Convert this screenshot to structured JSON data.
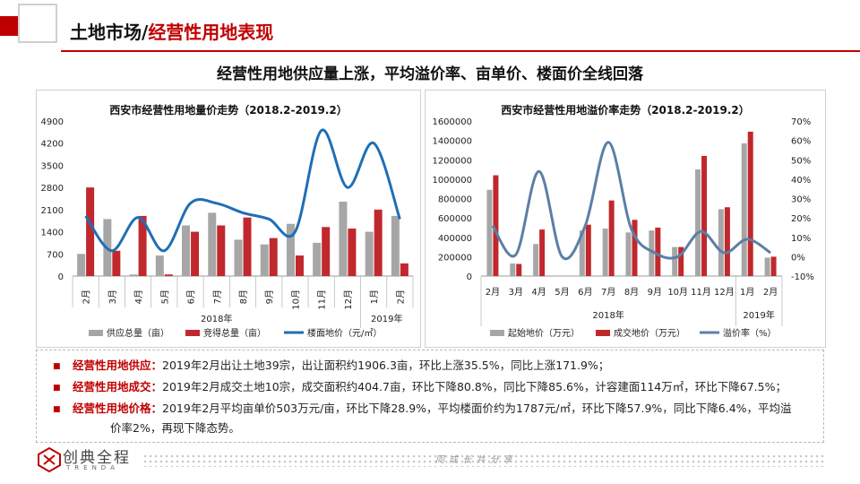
{
  "header": {
    "title_black": "土地市场/",
    "title_red": "经营性用地表现",
    "subtitle": "经营性用地供应量上涨，平均溢价率、亩单价、楼面价全线回落"
  },
  "colors": {
    "accent": "#c00000",
    "gray_bar": "#a6a6a6",
    "red_bar": "#c0282d",
    "line_blue": "#1f6fb5",
    "line_steel": "#5b7fa6"
  },
  "chart_data": [
    {
      "type": "bar",
      "title": "西安市经营性用地量价走势（2018.2-2019.2）",
      "categories": [
        "2月",
        "3月",
        "4月",
        "5月",
        "6月",
        "7月",
        "8月",
        "9月",
        "10月",
        "11月",
        "12月",
        "1月",
        "2月"
      ],
      "year_labels": [
        "2018年",
        "2019年"
      ],
      "ylim": [
        0,
        4900
      ],
      "yticks": [
        "4900",
        "4200",
        "3500",
        "2800",
        "2100",
        "1400",
        "700",
        "0"
      ],
      "series": [
        {
          "name": "供应总量（亩）",
          "type": "bar",
          "values": [
            700,
            1800,
            50,
            650,
            1600,
            2000,
            1150,
            1000,
            1650,
            1050,
            2350,
            1400,
            1900
          ]
        },
        {
          "name": "竞得总量（亩）",
          "type": "bar",
          "values": [
            2800,
            800,
            1900,
            50,
            1400,
            1600,
            1850,
            1200,
            650,
            1550,
            1500,
            2100,
            400
          ]
        },
        {
          "name": "楼面地价（元/㎡）",
          "type": "line",
          "values": [
            1900,
            800,
            1850,
            800,
            2300,
            2300,
            2000,
            1800,
            1400,
            4600,
            2800,
            4200,
            1800
          ]
        }
      ]
    },
    {
      "type": "bar",
      "title": "西安市经营性用地溢价率走势（2018.2-2019.2）",
      "categories": [
        "2月",
        "3月",
        "4月",
        "5月",
        "6月",
        "7月",
        "8月",
        "9月",
        "10月",
        "11月",
        "12月",
        "1月",
        "2月"
      ],
      "year_labels": [
        "2018年",
        "2019年"
      ],
      "ylim": [
        0,
        1600000
      ],
      "yticks": [
        "1600000",
        "1400000",
        "1200000",
        "1000000",
        "800000",
        "600000",
        "400000",
        "200000",
        "0"
      ],
      "y2lim": [
        -10,
        70
      ],
      "y2ticks": [
        "70%",
        "60%",
        "50%",
        "40%",
        "30%",
        "20%",
        "10%",
        "0%",
        "-10%"
      ],
      "series": [
        {
          "name": "起始地价（万元）",
          "type": "bar",
          "values": [
            890000,
            130000,
            330000,
            0,
            470000,
            490000,
            450000,
            470000,
            300000,
            1100000,
            690000,
            1370000,
            190000
          ]
        },
        {
          "name": "成交地价（万元）",
          "type": "bar",
          "values": [
            1040000,
            125000,
            480000,
            0,
            530000,
            780000,
            580000,
            500000,
            300000,
            1240000,
            710000,
            1490000,
            200000
          ]
        },
        {
          "name": "溢价率（%）",
          "type": "line",
          "values": [
            16,
            1,
            44,
            0,
            16,
            59,
            14,
            2,
            0,
            13,
            2,
            9,
            2
          ]
        }
      ]
    }
  ],
  "notes": [
    {
      "label": "经营性用地供应：",
      "text": "2019年2月出让土地39宗，出让面积约1906.3亩，环比上涨35.5%，同比上涨171.9%；"
    },
    {
      "label": "经营性用地成交：",
      "text": "2019年2月成交土地10宗，成交面积约404.7亩，环比下降80.8%，同比下降85.6%，计容建面114万㎡，环比下降67.5%；"
    },
    {
      "label": "经营性用地价格：",
      "text": "2019年2月平均亩单价503万元/亩，环比下降28.9%，平均楼面价约为1787元/㎡，环比下降57.9%，同比下降6.4%，平均溢",
      "cont": "价率2%，再现下降态势。"
    }
  ],
  "footer": {
    "logo_cn": "创典全程",
    "logo_en": "TRENDA",
    "slogan": "同 成 长   共 分 享"
  }
}
